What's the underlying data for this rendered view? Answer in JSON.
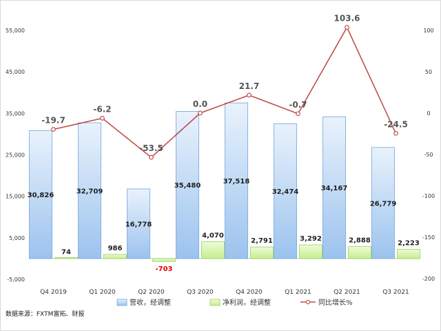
{
  "chart_data": {
    "type": "bar",
    "categories": [
      "Q4 2019",
      "Q1 2020",
      "Q2 2020",
      "Q3 2020",
      "Q4 2020",
      "Q1 2021",
      "Q2 2021",
      "Q3 2021"
    ],
    "series": [
      {
        "name": "营收，经调整",
        "kind": "bar",
        "axis": "left",
        "color": "#9cc3ee",
        "values": [
          30826,
          32709,
          16778,
          35480,
          37518,
          32474,
          34167,
          26779
        ],
        "labels": [
          "30,826",
          "32,709",
          "16,778",
          "35,480",
          "37,518",
          "32,474",
          "34,167",
          "26,779"
        ]
      },
      {
        "name": "净利润，经调整",
        "kind": "bar",
        "axis": "left",
        "color": "#c6ef8e",
        "values": [
          74,
          986,
          -703,
          4070,
          2791,
          3292,
          2888,
          2223
        ],
        "labels": [
          "74",
          "986",
          "-703",
          "4,070",
          "2,791",
          "3,292",
          "2,888",
          "2,223"
        ]
      },
      {
        "name": "同比增长%",
        "kind": "line",
        "axis": "right",
        "color": "#c0504d",
        "values": [
          -19.7,
          -6.2,
          -53.5,
          0.0,
          21.7,
          -0.7,
          103.6,
          -24.5
        ],
        "labels": [
          "-19.7",
          "-6.2",
          "-53.5",
          "0.0",
          "21.7",
          "-0.7",
          "103.6",
          "-24.5"
        ]
      }
    ],
    "ylim_left": [
      -5000,
      60000
    ],
    "yticks_left": [
      "-5,000",
      "5,000",
      "15,000",
      "25,000",
      "35,000",
      "45,000",
      "55,000"
    ],
    "ylim_right": [
      -200,
      120
    ],
    "yticks_right": [
      "-200",
      "-150",
      "-100",
      "-50",
      "0",
      "50",
      "100"
    ],
    "grid": false,
    "legend_position": "bottom",
    "source": "数据来源：FXTM富拓、财报",
    "negative_label_color": "#e00000"
  }
}
